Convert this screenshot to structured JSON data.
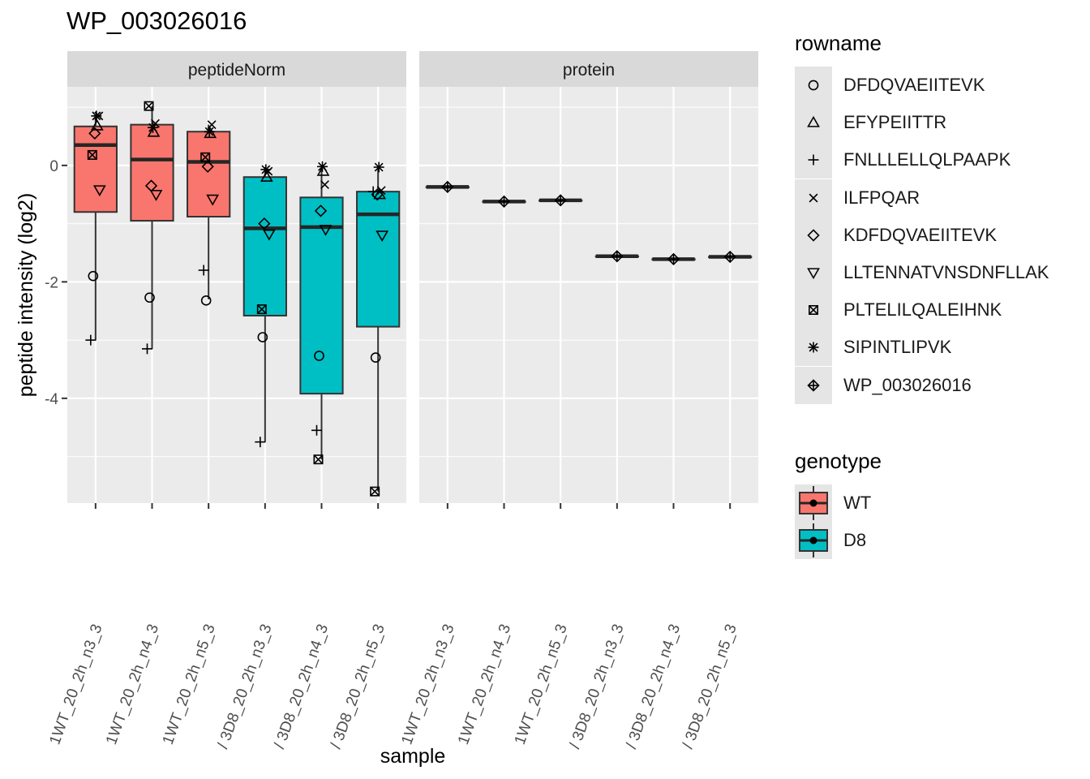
{
  "chart_data": {
    "type": "boxplot",
    "title": "WP_003026016",
    "xlabel": "sample",
    "ylabel": "peptide intensity (log2)",
    "ylim": [
      -5.8,
      1.35
    ],
    "y_ticks": [
      0,
      -2,
      -4
    ],
    "y_tick_labels": [
      "0",
      "-2",
      "-4"
    ],
    "grid": true,
    "legend_position": "right",
    "facets": [
      "peptideNorm",
      "protein"
    ],
    "samples": [
      "1WT_20_2h_n3_3",
      "1WT_20_2h_n4_3",
      "1WT_20_2h_n5_3",
      "3D8_20_2h_n3_3",
      "3D8_20_2h_n4_3",
      "3D8_20_2h_n5_3"
    ],
    "x_tick_labels": [
      "1WT_20_2h_n3_3",
      "1WT_20_2h_n4_3",
      "1WT_20_2h_n5_3",
      "/ 3D8_20_2h_n3_3",
      "/ 3D8_20_2h_n4_3",
      "/ 3D8_20_2h_n5_3"
    ],
    "sample_genotype": [
      "WT",
      "WT",
      "WT",
      "D8",
      "D8",
      "D8"
    ],
    "boxes": [
      {
        "facet": "peptideNorm",
        "sample": 0,
        "min": -3.0,
        "q1": -0.8,
        "median": 0.35,
        "q3": 0.67,
        "max": 0.85
      },
      {
        "facet": "peptideNorm",
        "sample": 1,
        "min": -3.15,
        "q1": -0.95,
        "median": 0.1,
        "q3": 0.7,
        "max": 1.02
      },
      {
        "facet": "peptideNorm",
        "sample": 2,
        "min": -2.3,
        "q1": -0.88,
        "median": 0.06,
        "q3": 0.58,
        "max": 0.7
      },
      {
        "facet": "peptideNorm",
        "sample": 3,
        "min": -4.75,
        "q1": -2.58,
        "median": -1.08,
        "q3": -0.2,
        "max": -0.07
      },
      {
        "facet": "peptideNorm",
        "sample": 4,
        "min": -5.05,
        "q1": -3.92,
        "median": -1.06,
        "q3": -0.55,
        "max": -0.02
      },
      {
        "facet": "peptideNorm",
        "sample": 5,
        "min": -5.6,
        "q1": -2.77,
        "median": -0.84,
        "q3": -0.45,
        "max": -0.03
      },
      {
        "facet": "protein",
        "sample": 0,
        "min": -0.37,
        "q1": -0.37,
        "median": -0.37,
        "q3": -0.37,
        "max": -0.37
      },
      {
        "facet": "protein",
        "sample": 1,
        "min": -0.62,
        "q1": -0.62,
        "median": -0.62,
        "q3": -0.62,
        "max": -0.62
      },
      {
        "facet": "protein",
        "sample": 2,
        "min": -0.6,
        "q1": -0.6,
        "median": -0.6,
        "q3": -0.6,
        "max": -0.6
      },
      {
        "facet": "protein",
        "sample": 3,
        "min": -1.56,
        "q1": -1.56,
        "median": -1.56,
        "q3": -1.56,
        "max": -1.56
      },
      {
        "facet": "protein",
        "sample": 4,
        "min": -1.61,
        "q1": -1.61,
        "median": -1.61,
        "q3": -1.61,
        "max": -1.61
      },
      {
        "facet": "protein",
        "sample": 5,
        "min": -1.57,
        "q1": -1.57,
        "median": -1.57,
        "q3": -1.57,
        "max": -1.57
      }
    ],
    "series": [
      {
        "name": "DFDQVAEIITEVK",
        "facet": "peptideNorm",
        "values": [
          -1.9,
          -2.27,
          -2.32,
          -2.95,
          -3.27,
          -3.3
        ]
      },
      {
        "name": "EFYPEIITTR",
        "facet": "peptideNorm",
        "values": [
          0.68,
          0.57,
          0.55,
          -0.2,
          -0.1,
          -0.5
        ]
      },
      {
        "name": "FNLLLELLQLPAAPK",
        "facet": "peptideNorm",
        "values": [
          -3.0,
          -3.15,
          -1.8,
          -4.75,
          -4.55,
          -0.45
        ]
      },
      {
        "name": "ILFPQAR",
        "facet": "peptideNorm",
        "values": [
          0.85,
          0.72,
          0.7,
          -0.1,
          -0.33,
          -0.43
        ]
      },
      {
        "name": "KDFDQVAEIITEVK",
        "facet": "peptideNorm",
        "values": [
          0.55,
          -0.35,
          -0.02,
          -1.0,
          -0.78,
          -0.5
        ]
      },
      {
        "name": "LLTENNATVNSDNFLLAK",
        "facet": "peptideNorm",
        "values": [
          -0.42,
          -0.5,
          -0.58,
          -1.18,
          -1.1,
          -1.2
        ]
      },
      {
        "name": "PLTELILQALEIHNK",
        "facet": "peptideNorm",
        "values": [
          0.18,
          1.02,
          0.14,
          -2.47,
          -5.05,
          -5.6
        ]
      },
      {
        "name": "SIPINTLIPVK",
        "facet": "peptideNorm",
        "values": [
          0.85,
          0.65,
          0.58,
          -0.07,
          -0.02,
          -0.03
        ]
      },
      {
        "name": "WP_003026016",
        "facet": "protein",
        "values": [
          -0.37,
          -0.62,
          -0.6,
          -1.56,
          -1.61,
          -1.57
        ]
      }
    ]
  },
  "legend": {
    "rowname": {
      "title": "rowname",
      "items": [
        {
          "label": "DFDQVAEIITEVK",
          "shape": "circle"
        },
        {
          "label": "EFYPEIITTR",
          "shape": "triangle"
        },
        {
          "label": "FNLLLELLQLPAAPK",
          "shape": "plus"
        },
        {
          "label": "ILFPQAR",
          "shape": "cross"
        },
        {
          "label": "KDFDQVAEIITEVK",
          "shape": "diamond"
        },
        {
          "label": "LLTENNATVNSDNFLLAK",
          "shape": "triangle-down"
        },
        {
          "label": "PLTELILQALEIHNK",
          "shape": "square-cross"
        },
        {
          "label": "SIPINTLIPVK",
          "shape": "asterisk"
        },
        {
          "label": "WP_003026016",
          "shape": "diamond-plus"
        }
      ]
    },
    "genotype": {
      "title": "genotype",
      "items": [
        {
          "label": "WT",
          "color": "#F8766D"
        },
        {
          "label": "D8",
          "color": "#00BFC4"
        }
      ]
    }
  }
}
